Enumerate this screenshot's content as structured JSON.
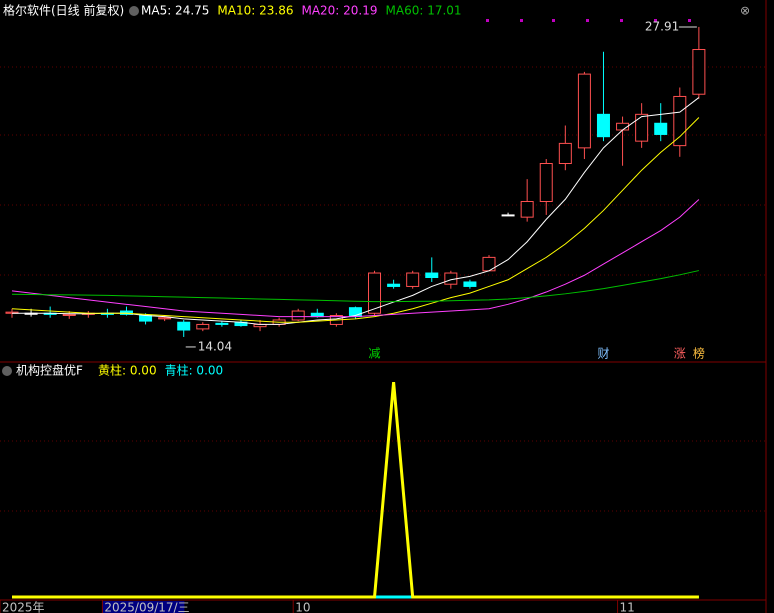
{
  "chart_data": [
    {
      "type": "candlestick",
      "title": "格尔软件(日线 前复权)",
      "open": [
        15.1,
        15.1,
        15.1,
        15.0,
        15.05,
        15.1,
        15.2,
        15.0,
        14.85,
        14.7,
        14.4,
        14.65,
        14.7,
        14.5,
        14.6,
        14.8,
        15.1,
        14.6,
        15.35,
        15.1,
        16.4,
        16.3,
        16.9,
        16.4,
        16.5,
        17.0,
        19.5,
        19.4,
        20.1,
        21.8,
        22.5,
        24.0,
        23.3,
        22.8,
        23.6,
        22.6,
        24.9
      ],
      "high": [
        15.3,
        15.3,
        15.4,
        15.2,
        15.2,
        15.3,
        15.4,
        15.1,
        14.95,
        14.8,
        14.7,
        14.75,
        14.8,
        14.8,
        14.9,
        15.3,
        15.3,
        15.1,
        15.4,
        17.0,
        16.6,
        17.0,
        17.6,
        17.0,
        16.6,
        17.7,
        19.6,
        21.1,
        22.0,
        23.5,
        25.9,
        26.8,
        23.9,
        24.5,
        24.5,
        25.2,
        27.91
      ],
      "low": [
        14.9,
        14.95,
        14.9,
        14.85,
        14.9,
        14.9,
        15.0,
        14.6,
        14.75,
        14.04,
        14.3,
        14.5,
        14.5,
        14.3,
        14.5,
        14.75,
        14.9,
        14.5,
        14.85,
        15.0,
        16.2,
        16.2,
        16.5,
        16.2,
        16.2,
        17.0,
        19.5,
        19.2,
        19.5,
        21.5,
        22.0,
        22.8,
        21.7,
        22.5,
        22.8,
        22.1,
        24.7
      ],
      "close": [
        15.15,
        15.1,
        15.05,
        15.05,
        15.1,
        15.05,
        15.05,
        14.75,
        14.9,
        14.35,
        14.6,
        14.6,
        14.55,
        14.6,
        14.8,
        15.2,
        14.95,
        15.0,
        14.95,
        16.9,
        16.3,
        16.9,
        16.7,
        16.9,
        16.3,
        17.6,
        19.5,
        20.1,
        21.8,
        22.7,
        25.8,
        23.0,
        23.6,
        24.0,
        23.1,
        24.8,
        26.9
      ],
      "up_color": "#ff5050",
      "down_color": "#00ffff",
      "flat_color": "#ffffff",
      "series": [
        {
          "name": "MA5: 24.75",
          "color": "#ffffff",
          "values": [
            15.1,
            15.1,
            15.1,
            15.08,
            15.08,
            15.1,
            15.1,
            15.0,
            14.95,
            14.85,
            14.8,
            14.75,
            14.7,
            14.6,
            14.6,
            14.7,
            14.8,
            14.85,
            15.0,
            15.3,
            15.6,
            15.9,
            16.3,
            16.6,
            16.75,
            17.0,
            17.5,
            18.3,
            19.3,
            20.2,
            21.4,
            22.5,
            23.3,
            23.9,
            24.0,
            24.1,
            24.75
          ]
        },
        {
          "name": "MA10: 23.86",
          "color": "#ffff00",
          "values": [
            15.3,
            15.25,
            15.2,
            15.15,
            15.1,
            15.1,
            15.1,
            15.05,
            15.0,
            14.95,
            14.9,
            14.85,
            14.8,
            14.75,
            14.7,
            14.7,
            14.75,
            14.8,
            14.85,
            14.95,
            15.1,
            15.3,
            15.55,
            15.8,
            16.0,
            16.3,
            16.6,
            17.1,
            17.6,
            18.2,
            18.9,
            19.7,
            20.6,
            21.5,
            22.3,
            23.0,
            23.86
          ]
        },
        {
          "name": "MA20: 20.19",
          "color": "#ff40ff",
          "values": [
            16.1,
            16.0,
            15.9,
            15.8,
            15.7,
            15.6,
            15.5,
            15.4,
            15.3,
            15.2,
            15.15,
            15.1,
            15.05,
            15.0,
            14.95,
            14.95,
            14.95,
            14.95,
            14.95,
            15.0,
            15.05,
            15.1,
            15.15,
            15.2,
            15.25,
            15.3,
            15.5,
            15.75,
            16.05,
            16.4,
            16.8,
            17.3,
            17.8,
            18.3,
            18.8,
            19.4,
            20.19
          ]
        },
        {
          "name": "MA60: 17.01",
          "color": "#00c000",
          "values": [
            15.95,
            15.94,
            15.93,
            15.92,
            15.91,
            15.9,
            15.88,
            15.86,
            15.84,
            15.82,
            15.8,
            15.78,
            15.76,
            15.74,
            15.72,
            15.7,
            15.68,
            15.66,
            15.64,
            15.62,
            15.62,
            15.63,
            15.64,
            15.66,
            15.68,
            15.7,
            15.74,
            15.8,
            15.88,
            15.97,
            16.08,
            16.2,
            16.35,
            16.5,
            16.65,
            16.82,
            17.01
          ]
        }
      ],
      "ylim": [
        13.68,
        28.31
      ],
      "annotations": [
        {
          "value": 27.91,
          "index": 36
        },
        {
          "value": 14.04,
          "index": 9
        }
      ],
      "events": [
        {
          "label": "减",
          "index": 19,
          "color": "#00d000"
        },
        {
          "label": "财",
          "index": 31,
          "color": "#80c0ff"
        },
        {
          "label": "涨",
          "index": 35,
          "color": "#ff6060"
        },
        {
          "label": "榜",
          "index": 36,
          "color": "#ffc040"
        }
      ],
      "xticks": [
        {
          "value": 0,
          "label": "2025年"
        },
        {
          "value": 5,
          "label": "2025/09/17/三"
        },
        {
          "value": 15,
          "label": "10"
        },
        {
          "value": 32,
          "label": "11"
        }
      ]
    },
    {
      "type": "line",
      "title": "机构控盘优F",
      "series": [
        {
          "name": "黄柱: 0.00",
          "color": "#ffff00",
          "values": [
            0,
            0,
            0,
            0,
            0,
            0,
            0,
            0,
            0,
            0,
            0,
            0,
            0,
            0,
            0,
            0,
            0,
            0,
            0,
            0,
            1,
            0,
            0,
            0,
            0,
            0,
            0,
            0,
            0,
            0,
            0,
            0,
            0,
            0,
            0,
            0,
            0
          ]
        },
        {
          "name": "青柱: 0.00",
          "color": "#00ffff",
          "values": [
            0,
            0,
            0,
            0,
            0,
            0,
            0,
            0,
            0,
            0,
            0,
            0,
            0,
            0,
            0,
            0,
            0,
            0,
            0,
            0,
            0,
            0,
            0,
            0,
            0,
            0,
            0,
            0,
            0,
            0,
            0,
            0,
            0,
            0,
            0,
            0,
            0
          ]
        }
      ],
      "ylim": [
        0,
        1.08
      ]
    }
  ]
}
